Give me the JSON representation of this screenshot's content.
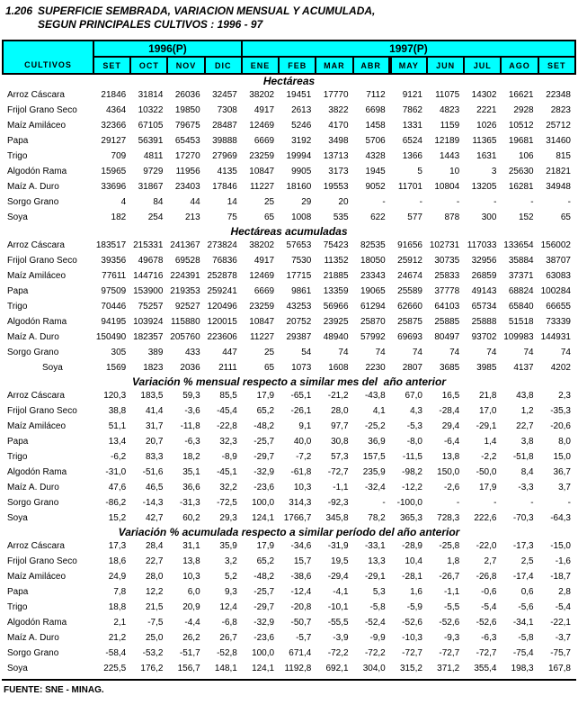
{
  "colors": {
    "header_bg": "#00FFFF",
    "border": "#000000"
  },
  "title": {
    "number": "1.206",
    "line1": "SUPERFICIE SEMBRADA, VARIACION MENSUAL Y ACUMULADA,",
    "line2": "SEGUN PRINCIPALES CULTIVOS : 1996 - 97"
  },
  "header": {
    "cultivos": "CULTIVOS",
    "year_1996": "1996(P)",
    "year_1997": "1997(P)",
    "months_1996": [
      "SET",
      "OCT",
      "NOV",
      "DIC"
    ],
    "months_1997": [
      "ENE",
      "FEB",
      "MAR",
      "ABR",
      "MAY",
      "JUN",
      "JUL",
      "AGO",
      "SET"
    ],
    "thick_divider_before": "MAY"
  },
  "sections": [
    {
      "heading": "Hectáreas",
      "rows": [
        {
          "label": "Arroz Cáscara",
          "values": [
            "21846",
            "31814",
            "26036",
            "32457",
            "38202",
            "19451",
            "17770",
            "7112",
            "9121",
            "11075",
            "14302",
            "16621",
            "22348"
          ]
        },
        {
          "label": "Frijol Grano Seco",
          "values": [
            "4364",
            "10322",
            "19850",
            "7308",
            "4917",
            "2613",
            "3822",
            "6698",
            "7862",
            "4823",
            "2221",
            "2928",
            "2823"
          ]
        },
        {
          "label": "Maíz Amiláceo",
          "values": [
            "32366",
            "67105",
            "79675",
            "28487",
            "12469",
            "5246",
            "4170",
            "1458",
            "1331",
            "1159",
            "1026",
            "10512",
            "25712"
          ]
        },
        {
          "label": "Papa",
          "values": [
            "29127",
            "56391",
            "65453",
            "39888",
            "6669",
            "3192",
            "3498",
            "5706",
            "6524",
            "12189",
            "11365",
            "19681",
            "31460"
          ]
        },
        {
          "label": "Trigo",
          "values": [
            "709",
            "4811",
            "17270",
            "27969",
            "23259",
            "19994",
            "13713",
            "4328",
            "1366",
            "1443",
            "1631",
            "106",
            "815"
          ]
        },
        {
          "label": "Algodón Rama",
          "values": [
            "15965",
            "9729",
            "11956",
            "4135",
            "10847",
            "9905",
            "3173",
            "1945",
            "5",
            "10",
            "3",
            "25630",
            "21821"
          ]
        },
        {
          "label": "Maíz A. Duro",
          "values": [
            "33696",
            "31867",
            "23403",
            "17846",
            "11227",
            "18160",
            "19553",
            "9052",
            "11701",
            "10804",
            "13205",
            "16281",
            "34948"
          ]
        },
        {
          "label": "Sorgo Grano",
          "values": [
            "4",
            "84",
            "44",
            "14",
            "25",
            "29",
            "20",
            "-",
            "-",
            "-",
            "-",
            "-",
            "-"
          ]
        },
        {
          "label": "Soya",
          "values": [
            "182",
            "254",
            "213",
            "75",
            "65",
            "1008",
            "535",
            "622",
            "577",
            "878",
            "300",
            "152",
            "65"
          ]
        }
      ]
    },
    {
      "heading": "Hectáreas acumuladas",
      "rows": [
        {
          "label": "Arroz Cáscara",
          "values": [
            "183517",
            "215331",
            "241367",
            "273824",
            "38202",
            "57653",
            "75423",
            "82535",
            "91656",
            "102731",
            "117033",
            "133654",
            "156002"
          ]
        },
        {
          "label": "Frijol Grano Seco",
          "values": [
            "39356",
            "49678",
            "69528",
            "76836",
            "4917",
            "7530",
            "11352",
            "18050",
            "25912",
            "30735",
            "32956",
            "35884",
            "38707"
          ]
        },
        {
          "label": "Maíz Amiláceo",
          "values": [
            "77611",
            "144716",
            "224391",
            "252878",
            "12469",
            "17715",
            "21885",
            "23343",
            "24674",
            "25833",
            "26859",
            "37371",
            "63083"
          ]
        },
        {
          "label": "Papa",
          "values": [
            "97509",
            "153900",
            "219353",
            "259241",
            "6669",
            "9861",
            "13359",
            "19065",
            "25589",
            "37778",
            "49143",
            "68824",
            "100284"
          ]
        },
        {
          "label": "Trigo",
          "values": [
            "70446",
            "75257",
            "92527",
            "120496",
            "23259",
            "43253",
            "56966",
            "61294",
            "62660",
            "64103",
            "65734",
            "65840",
            "66655"
          ]
        },
        {
          "label": "Algodón Rama",
          "values": [
            "94195",
            "103924",
            "115880",
            "120015",
            "10847",
            "20752",
            "23925",
            "25870",
            "25875",
            "25885",
            "25888",
            "51518",
            "73339"
          ]
        },
        {
          "label": "Maíz A. Duro",
          "values": [
            "150490",
            "182357",
            "205760",
            "223606",
            "11227",
            "29387",
            "48940",
            "57992",
            "69693",
            "80497",
            "93702",
            "109983",
            "144931"
          ]
        },
        {
          "label": "Sorgo Grano",
          "values": [
            "305",
            "389",
            "433",
            "447",
            "25",
            "54",
            "74",
            "74",
            "74",
            "74",
            "74",
            "74",
            "74"
          ]
        },
        {
          "label": "Soya",
          "indent": true,
          "values": [
            "1569",
            "1823",
            "2036",
            "2111",
            "65",
            "1073",
            "1608",
            "2230",
            "2807",
            "3685",
            "3985",
            "4137",
            "4202"
          ]
        }
      ]
    },
    {
      "heading": "Variación % mensual respecto a similar mes del  año anterior",
      "rows": [
        {
          "label": "Arroz Cáscara",
          "values": [
            "120,3",
            "183,5",
            "59,3",
            "85,5",
            "17,9",
            "-65,1",
            "-21,2",
            "-43,8",
            "67,0",
            "16,5",
            "21,8",
            "43,8",
            "2,3"
          ]
        },
        {
          "label": "Frijol Grano Seco",
          "values": [
            "38,8",
            "41,4",
            "-3,6",
            "-45,4",
            "65,2",
            "-26,1",
            "28,0",
            "4,1",
            "4,3",
            "-28,4",
            "17,0",
            "1,2",
            "-35,3"
          ]
        },
        {
          "label": "Maíz Amiláceo",
          "values": [
            "51,1",
            "31,7",
            "-11,8",
            "-22,8",
            "-48,2",
            "9,1",
            "97,7",
            "-25,2",
            "-5,3",
            "29,4",
            "-29,1",
            "22,7",
            "-20,6"
          ]
        },
        {
          "label": "Papa",
          "values": [
            "13,4",
            "20,7",
            "-6,3",
            "32,3",
            "-25,7",
            "40,0",
            "30,8",
            "36,9",
            "-8,0",
            "-6,4",
            "1,4",
            "3,8",
            "8,0"
          ]
        },
        {
          "label": "Trigo",
          "values": [
            "-6,2",
            "83,3",
            "18,2",
            "-8,9",
            "-29,7",
            "-7,2",
            "57,3",
            "157,5",
            "-11,5",
            "13,8",
            "-2,2",
            "-51,8",
            "15,0"
          ]
        },
        {
          "label": "Algodón Rama",
          "values": [
            "-31,0",
            "-51,6",
            "35,1",
            "-45,1",
            "-32,9",
            "-61,8",
            "-72,7",
            "235,9",
            "-98,2",
            "150,0",
            "-50,0",
            "8,4",
            "36,7"
          ]
        },
        {
          "label": "Maíz A. Duro",
          "values": [
            "47,6",
            "46,5",
            "36,6",
            "32,2",
            "-23,6",
            "10,3",
            "-1,1",
            "-32,4",
            "-12,2",
            "-2,6",
            "17,9",
            "-3,3",
            "3,7"
          ]
        },
        {
          "label": "Sorgo Grano",
          "values": [
            "-86,2",
            "-14,3",
            "-31,3",
            "-72,5",
            "100,0",
            "314,3",
            "-92,3",
            "-",
            "-100,0",
            "-",
            "-",
            "-",
            "-"
          ]
        },
        {
          "label": "Soya",
          "values": [
            "15,2",
            "42,7",
            "60,2",
            "29,3",
            "124,1",
            "1766,7",
            "345,8",
            "78,2",
            "365,3",
            "728,3",
            "222,6",
            "-70,3",
            "-64,3"
          ]
        }
      ]
    },
    {
      "heading": "Variación % acumulada respecto a similar período del año anterior",
      "rows": [
        {
          "label": "Arroz Cáscara",
          "values": [
            "17,3",
            "28,4",
            "31,1",
            "35,9",
            "17,9",
            "-34,6",
            "-31,9",
            "-33,1",
            "-28,9",
            "-25,8",
            "-22,0",
            "-17,3",
            "-15,0"
          ]
        },
        {
          "label": "Frijol Grano Seco",
          "values": [
            "18,6",
            "22,7",
            "13,8",
            "3,2",
            "65,2",
            "15,7",
            "19,5",
            "13,3",
            "10,4",
            "1,8",
            "2,7",
            "2,5",
            "-1,6"
          ]
        },
        {
          "label": "Maíz Amiláceo",
          "values": [
            "24,9",
            "28,0",
            "10,3",
            "5,2",
            "-48,2",
            "-38,6",
            "-29,4",
            "-29,1",
            "-28,1",
            "-26,7",
            "-26,8",
            "-17,4",
            "-18,7"
          ]
        },
        {
          "label": "Papa",
          "values": [
            "7,8",
            "12,2",
            "6,0",
            "9,3",
            "-25,7",
            "-12,4",
            "-4,1",
            "5,3",
            "1,6",
            "-1,1",
            "-0,6",
            "0,6",
            "2,8"
          ]
        },
        {
          "label": "Trigo",
          "values": [
            "18,8",
            "21,5",
            "20,9",
            "12,4",
            "-29,7",
            "-20,8",
            "-10,1",
            "-5,8",
            "-5,9",
            "-5,5",
            "-5,4",
            "-5,6",
            "-5,4"
          ]
        },
        {
          "label": "Algodón Rama",
          "values": [
            "2,1",
            "-7,5",
            "-4,4",
            "-6,8",
            "-32,9",
            "-50,7",
            "-55,5",
            "-52,4",
            "-52,6",
            "-52,6",
            "-52,6",
            "-34,1",
            "-22,1"
          ]
        },
        {
          "label": "Maíz A. Duro",
          "values": [
            "21,2",
            "25,0",
            "26,2",
            "26,7",
            "-23,6",
            "-5,7",
            "-3,9",
            "-9,9",
            "-10,3",
            "-9,3",
            "-6,3",
            "-5,8",
            "-3,7"
          ]
        },
        {
          "label": "Sorgo Grano",
          "values": [
            "-58,4",
            "-53,2",
            "-51,7",
            "-52,8",
            "100,0",
            "671,4",
            "-72,2",
            "-72,2",
            "-72,7",
            "-72,7",
            "-72,7",
            "-75,4",
            "-75,7"
          ]
        },
        {
          "label": "Soya",
          "values": [
            "225,5",
            "176,2",
            "156,7",
            "148,1",
            "124,1",
            "1192,8",
            "692,1",
            "304,0",
            "315,2",
            "371,2",
            "355,4",
            "198,3",
            "167,8"
          ]
        }
      ]
    }
  ],
  "footer": {
    "source": "FUENTE: SNE - MINAG."
  }
}
